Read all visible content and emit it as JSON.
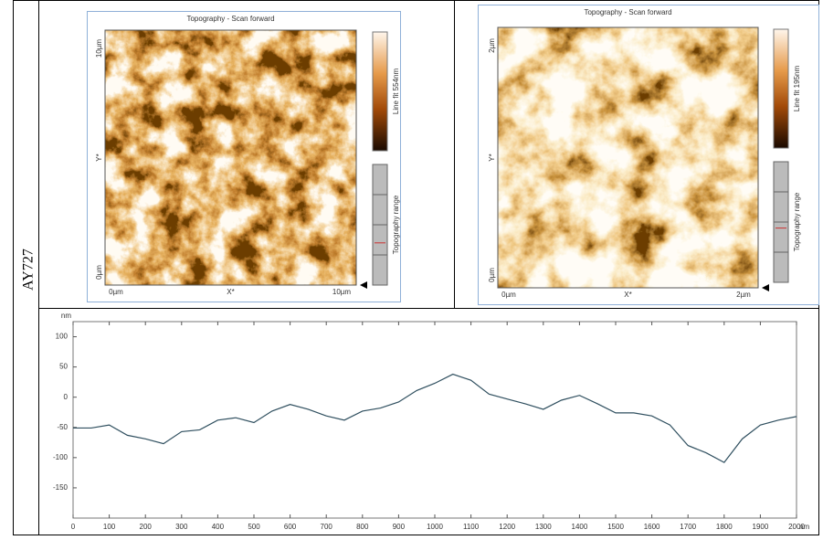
{
  "label": "AY727",
  "images": [
    {
      "title": "Topography - Scan forward",
      "y_top": "10µm",
      "y_mid": "Y*",
      "y_bottom": "0µm",
      "x_left": "0µm",
      "x_mid": "X*",
      "x_right": "10µm",
      "colorbar_label": "Line fit 554nm",
      "range_label": "Topography range"
    },
    {
      "title": "Topography - Scan forward",
      "y_top": "2µm",
      "y_mid": "Y*",
      "y_bottom": "0µm",
      "x_left": "0µm",
      "x_mid": "X*",
      "x_right": "2µm",
      "colorbar_label": "Line fit 195nm",
      "range_label": "Topography range"
    }
  ],
  "chart_data": {
    "type": "line",
    "y_label": "nm",
    "x_label": "nm",
    "x": [
      0,
      50,
      100,
      150,
      200,
      250,
      300,
      350,
      400,
      450,
      500,
      550,
      600,
      650,
      700,
      750,
      800,
      850,
      900,
      950,
      1000,
      1050,
      1100,
      1150,
      1200,
      1250,
      1300,
      1350,
      1400,
      1450,
      1500,
      1550,
      1600,
      1650,
      1700,
      1750,
      1800,
      1850,
      1900,
      1950,
      2000
    ],
    "series": [
      {
        "color": "#2f4f5f",
        "values": [
          -51,
          -51,
          -46,
          -63,
          -69,
          -77,
          -57,
          -54,
          -38,
          -34,
          -42,
          -23,
          -12,
          -20,
          -31,
          -38,
          -23,
          -18,
          -8,
          11,
          23,
          38,
          28,
          5,
          -3,
          -11,
          -20,
          -5,
          3,
          -11,
          -26,
          -26,
          -31,
          -46,
          -80,
          -92,
          -108,
          -69,
          -46,
          -38,
          -32
        ]
      }
    ],
    "xlim": [
      0,
      2000
    ],
    "ylim": [
      -200,
      125
    ],
    "xticks": [
      0,
      100,
      200,
      300,
      400,
      500,
      600,
      700,
      800,
      900,
      1000,
      1100,
      1200,
      1300,
      1400,
      1500,
      1600,
      1700,
      1800,
      1900,
      2000
    ],
    "yticks": [
      100,
      50,
      0,
      -50,
      -100,
      -150
    ],
    "grid": false
  }
}
